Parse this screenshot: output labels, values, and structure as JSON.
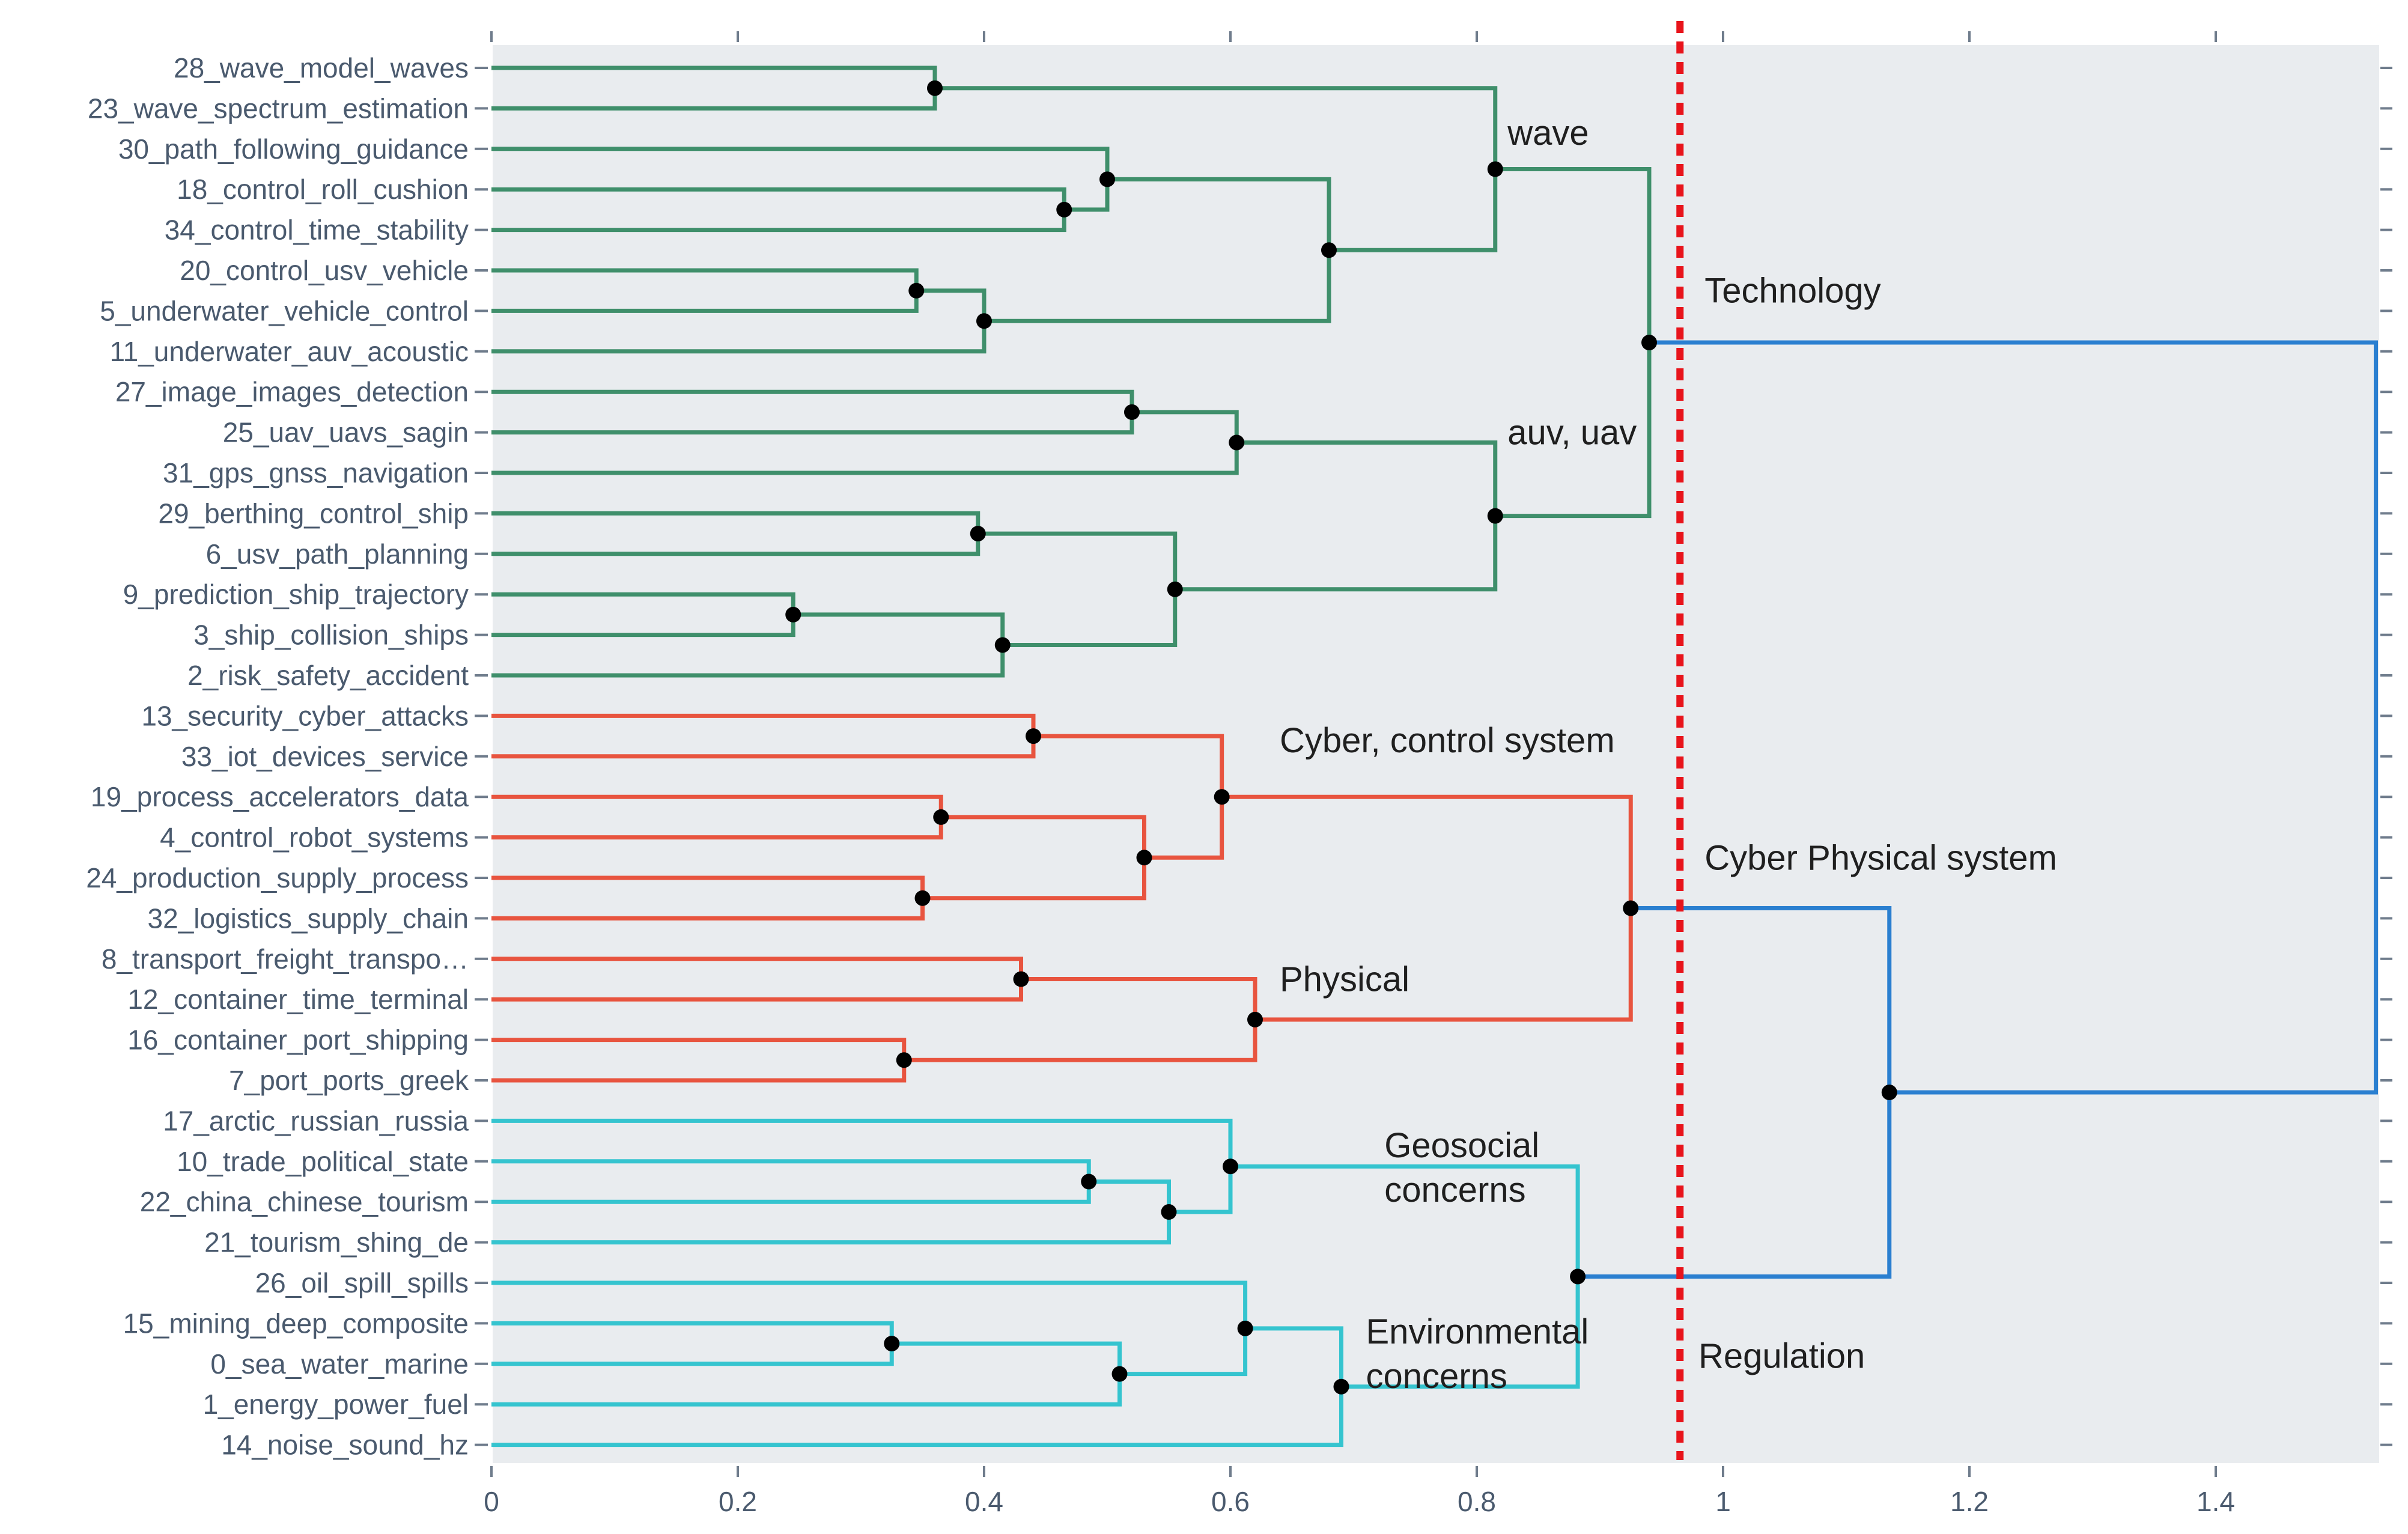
{
  "chart_data": {
    "type": "dendrogram",
    "orientation": "horizontal",
    "xlim": [
      0,
      1.53
    ],
    "x_ticks": [
      0,
      0.2,
      0.4,
      0.6,
      0.8,
      1,
      1.2,
      1.4
    ],
    "x_tick_labels": [
      "0",
      "0.2",
      "0.4",
      "0.6",
      "0.8",
      "1",
      "1.2",
      "1.4"
    ],
    "threshold": 0.965,
    "leaves": [
      "28_wave_model_waves",
      "23_wave_spectrum_estimation",
      "30_path_following_guidance",
      "18_control_roll_cushion",
      "34_control_time_stability",
      "20_control_usv_vehicle",
      "5_underwater_vehicle_control",
      "11_underwater_auv_acoustic",
      "27_image_images_detection",
      "25_uav_uavs_sagin",
      "31_gps_gnss_navigation",
      "29_berthing_control_ship",
      "6_usv_path_planning",
      "9_prediction_ship_trajectory",
      "3_ship_collision_ships",
      "2_risk_safety_accident",
      "13_security_cyber_attacks",
      "33_iot_devices_service",
      "19_process_accelerators_data",
      "4_control_robot_systems",
      "24_production_supply_process",
      "32_logistics_supply_chain",
      "8_transport_freight_transpo…",
      "12_container_time_terminal",
      "16_container_port_shipping",
      "7_port_ports_greek",
      "17_arctic_russian_russia",
      "10_trade_political_state",
      "22_china_chinese_tourism",
      "21_tourism_shing_de",
      "26_oil_spill_spills",
      "15_mining_deep_composite",
      "0_sea_water_marine",
      "1_energy_power_fuel",
      "14_noise_sound_hz"
    ],
    "colors": {
      "green": "#3f8f6b",
      "red": "#e8543f",
      "cyan": "#35c4cf",
      "blue": "#2a7fd0",
      "threshold": "#e8141b",
      "plot_bg": "#e9ecef",
      "node": "#000000"
    },
    "merges": [
      {
        "id": "m1",
        "left": "L0",
        "right": "L1",
        "height": 0.36,
        "color": "green"
      },
      {
        "id": "m2",
        "left": "L3",
        "right": "L4",
        "height": 0.465,
        "color": "green"
      },
      {
        "id": "m3",
        "left": "L2",
        "right": "m2",
        "height": 0.5,
        "color": "green"
      },
      {
        "id": "m4",
        "left": "L5",
        "right": "L6",
        "height": 0.345,
        "color": "green"
      },
      {
        "id": "m5",
        "left": "m4",
        "right": "L7",
        "height": 0.4,
        "color": "green"
      },
      {
        "id": "m6",
        "left": "m3",
        "right": "m5",
        "height": 0.68,
        "color": "green"
      },
      {
        "id": "m7",
        "left": "m1",
        "right": "m6",
        "height": 0.815,
        "color": "green"
      },
      {
        "id": "m8",
        "left": "L8",
        "right": "L9",
        "height": 0.52,
        "color": "green"
      },
      {
        "id": "m9",
        "left": "m8",
        "right": "L10",
        "height": 0.605,
        "color": "green"
      },
      {
        "id": "m10",
        "left": "L11",
        "right": "L12",
        "height": 0.395,
        "color": "green"
      },
      {
        "id": "m11",
        "left": "L13",
        "right": "L14",
        "height": 0.245,
        "color": "green"
      },
      {
        "id": "m12",
        "left": "m11",
        "right": "L15",
        "height": 0.415,
        "color": "green"
      },
      {
        "id": "m13",
        "left": "m10",
        "right": "m12",
        "height": 0.555,
        "color": "green"
      },
      {
        "id": "m14",
        "left": "m9",
        "right": "m13",
        "height": 0.815,
        "color": "green"
      },
      {
        "id": "m15",
        "left": "m7",
        "right": "m14",
        "height": 0.94,
        "color": "green"
      },
      {
        "id": "m16",
        "left": "L16",
        "right": "L17",
        "height": 0.44,
        "color": "red"
      },
      {
        "id": "m17",
        "left": "L18",
        "right": "L19",
        "height": 0.365,
        "color": "red"
      },
      {
        "id": "m18",
        "left": "L20",
        "right": "L21",
        "height": 0.35,
        "color": "red"
      },
      {
        "id": "m19",
        "left": "m17",
        "right": "m18",
        "height": 0.53,
        "color": "red"
      },
      {
        "id": "m20",
        "left": "m16",
        "right": "m19",
        "height": 0.593,
        "color": "red"
      },
      {
        "id": "m21",
        "left": "L22",
        "right": "L23",
        "height": 0.43,
        "color": "red"
      },
      {
        "id": "m22",
        "left": "L24",
        "right": "L25",
        "height": 0.335,
        "color": "red"
      },
      {
        "id": "m23",
        "left": "m21",
        "right": "m22",
        "height": 0.62,
        "color": "red"
      },
      {
        "id": "m24",
        "left": "m20",
        "right": "m23",
        "height": 0.925,
        "color": "red"
      },
      {
        "id": "m25",
        "left": "L27",
        "right": "L28",
        "height": 0.485,
        "color": "cyan"
      },
      {
        "id": "m26",
        "left": "m25",
        "right": "L29",
        "height": 0.55,
        "color": "cyan"
      },
      {
        "id": "m27",
        "left": "L26",
        "right": "m26",
        "height": 0.6,
        "color": "cyan"
      },
      {
        "id": "m28",
        "left": "L31",
        "right": "L32",
        "height": 0.325,
        "color": "cyan"
      },
      {
        "id": "m29",
        "left": "m28",
        "right": "L33",
        "height": 0.51,
        "color": "cyan"
      },
      {
        "id": "m30",
        "left": "L30",
        "right": "m29",
        "height": 0.612,
        "color": "cyan"
      },
      {
        "id": "m31",
        "left": "m30",
        "right": "L34",
        "height": 0.69,
        "color": "cyan"
      },
      {
        "id": "m32",
        "left": "m27",
        "right": "m31",
        "height": 0.882,
        "color": "cyan"
      },
      {
        "id": "m33",
        "left": "m24",
        "right": "m32",
        "height": 1.135,
        "color": "blue"
      },
      {
        "id": "m34",
        "left": "m15",
        "right": "m33",
        "height": 1.53,
        "color": "blue"
      }
    ],
    "annotations": [
      {
        "text": "wave",
        "x": 0.825,
        "y_leaf": 1.6
      },
      {
        "text": "auv, uav",
        "x": 0.825,
        "y_leaf": 9.0
      },
      {
        "text": "Technology",
        "x": 0.985,
        "y_leaf": 5.5
      },
      {
        "text": "Cyber, control system",
        "x": 0.64,
        "y_leaf": 16.6
      },
      {
        "text": "Cyber Physical system",
        "x": 0.985,
        "y_leaf": 19.5
      },
      {
        "text": "Physical",
        "x": 0.64,
        "y_leaf": 22.5
      },
      {
        "text": "Geosocial",
        "x": 0.725,
        "y_leaf": 26.6
      },
      {
        "text": "concerns",
        "x": 0.725,
        "y_leaf": 27.7
      },
      {
        "text": "Environmental",
        "x": 0.71,
        "y_leaf": 31.2
      },
      {
        "text": "concerns",
        "x": 0.71,
        "y_leaf": 32.3
      },
      {
        "text": "Regulation",
        "x": 0.98,
        "y_leaf": 31.8
      }
    ]
  }
}
